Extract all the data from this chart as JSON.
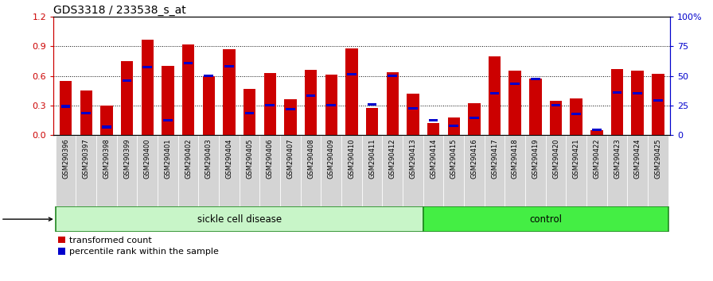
{
  "title": "GDS3318 / 233538_s_at",
  "samples": [
    "GSM290396",
    "GSM290397",
    "GSM290398",
    "GSM290399",
    "GSM290400",
    "GSM290401",
    "GSM290402",
    "GSM290403",
    "GSM290404",
    "GSM290405",
    "GSM290406",
    "GSM290407",
    "GSM290408",
    "GSM290409",
    "GSM290410",
    "GSM290411",
    "GSM290412",
    "GSM290413",
    "GSM290414",
    "GSM290415",
    "GSM290416",
    "GSM290417",
    "GSM290418",
    "GSM290419",
    "GSM290420",
    "GSM290421",
    "GSM290422",
    "GSM290423",
    "GSM290424",
    "GSM290425"
  ],
  "transformed_count": [
    0.55,
    0.45,
    0.3,
    0.75,
    0.97,
    0.7,
    0.92,
    0.6,
    0.87,
    0.47,
    0.63,
    0.36,
    0.66,
    0.61,
    0.88,
    0.27,
    0.64,
    0.42,
    0.12,
    0.18,
    0.32,
    0.8,
    0.65,
    0.57,
    0.35,
    0.37,
    0.05,
    0.67,
    0.65,
    0.62
  ],
  "percentile_rank": [
    0.29,
    0.22,
    0.08,
    0.55,
    0.69,
    0.15,
    0.73,
    0.6,
    0.7,
    0.22,
    0.3,
    0.26,
    0.4,
    0.3,
    0.62,
    0.31,
    0.6,
    0.27,
    0.15,
    0.09,
    0.17,
    0.42,
    0.52,
    0.57,
    0.3,
    0.21,
    0.05,
    0.43,
    0.42,
    0.35
  ],
  "sickle_cell_count": 18,
  "control_count": 12,
  "bar_color": "#cc0000",
  "percentile_color": "#0000cc",
  "ylim_left": [
    0,
    1.2
  ],
  "yticks_left": [
    0,
    0.3,
    0.6,
    0.9,
    1.2
  ],
  "yticks_right": [
    0,
    25,
    50,
    75,
    100
  ],
  "ylabel_left_color": "#cc0000",
  "ylabel_right_color": "#0000cc",
  "sickle_color": "#c8f5c8",
  "control_color": "#44ee44",
  "tick_bg_color": "#d4d4d4",
  "tick_label_fontsize": 6.0,
  "title_fontsize": 10,
  "bar_width": 0.6
}
